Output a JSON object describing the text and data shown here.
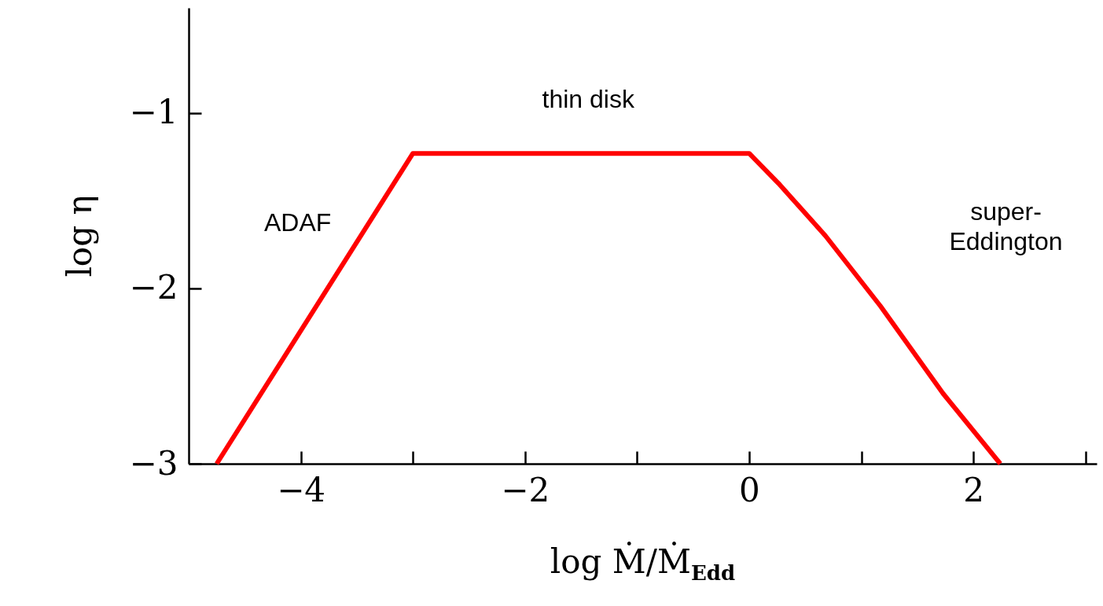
{
  "chart_data": {
    "type": "line",
    "xlabel": "log Ṁ/Ṁ$_{Edd}$",
    "ylabel": "log η",
    "xlim": [
      -5,
      3.1
    ],
    "ylim": [
      -3,
      -0.4
    ],
    "xticks": [
      -4,
      {
        "value": -3,
        "label": null
      },
      -2,
      {
        "value": -1,
        "label": null
      },
      0,
      {
        "value": 1,
        "label": null
      },
      2,
      {
        "value": 3,
        "label": null
      }
    ],
    "yticks": [
      -3,
      -2,
      -1
    ],
    "grid": false,
    "line_style": "solid",
    "marker": "none",
    "series": [
      {
        "color": "#ff0000",
        "x": [
          -4.75,
          -3.0,
          0,
          0.26,
          0.68,
          1.17,
          1.73,
          2.24
        ],
        "values": [
          -3,
          -1.23,
          -1.23,
          -1.4,
          -1.7,
          -2.1,
          -2.6,
          -3
        ]
      }
    ],
    "annotations": [
      "thin disk",
      "ADAF",
      "super-\nEddington"
    ]
  }
}
